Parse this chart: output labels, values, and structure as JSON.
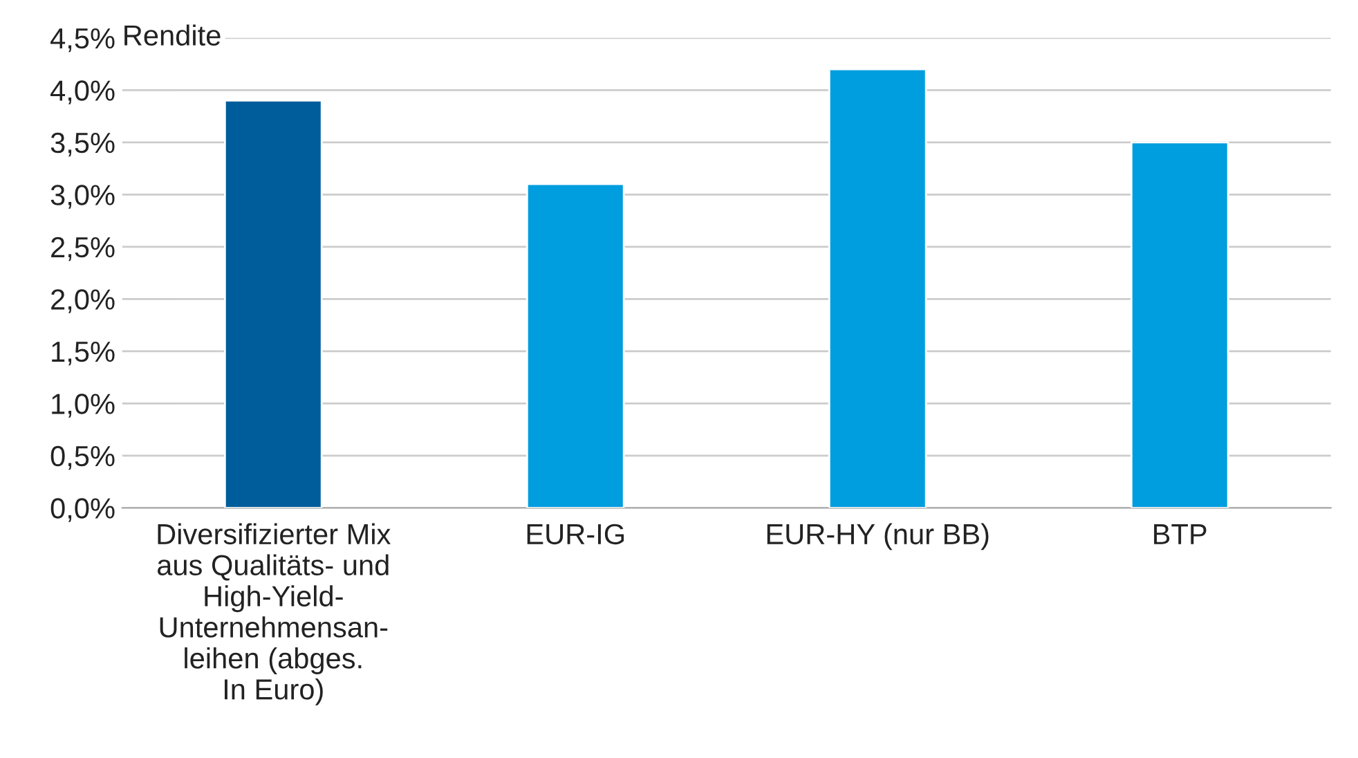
{
  "chart_data": {
    "type": "bar",
    "ylabel": "Rendite",
    "categories": [
      "Diversifizierter Mix\naus Qualitäts- und\nHigh-Yield-\nUnternehmensan-\nleihen (abges.\nIn Euro)",
      "EUR-IG",
      "EUR-HY (nur BB)",
      "BTP"
    ],
    "values": [
      3.9,
      3.1,
      4.2,
      3.5
    ],
    "colors": [
      "#005d9c",
      "#009ddf",
      "#009ddf",
      "#009ddf"
    ],
    "ylim": [
      0,
      4.5
    ],
    "yticks": [
      {
        "value": 0,
        "label": "0,0%"
      },
      {
        "value": 0.5,
        "label": "0,5%"
      },
      {
        "value": 1,
        "label": "1,0%"
      },
      {
        "value": 1.5,
        "label": "1,5%"
      },
      {
        "value": 2,
        "label": "2,0%"
      },
      {
        "value": 2.5,
        "label": "2,5%"
      },
      {
        "value": 3,
        "label": "3,0%"
      },
      {
        "value": 3.5,
        "label": "3,5%"
      },
      {
        "value": 4,
        "label": "4,0%"
      },
      {
        "value": 4.5,
        "label": "4,5%"
      }
    ],
    "grid": "y",
    "legend": false
  }
}
